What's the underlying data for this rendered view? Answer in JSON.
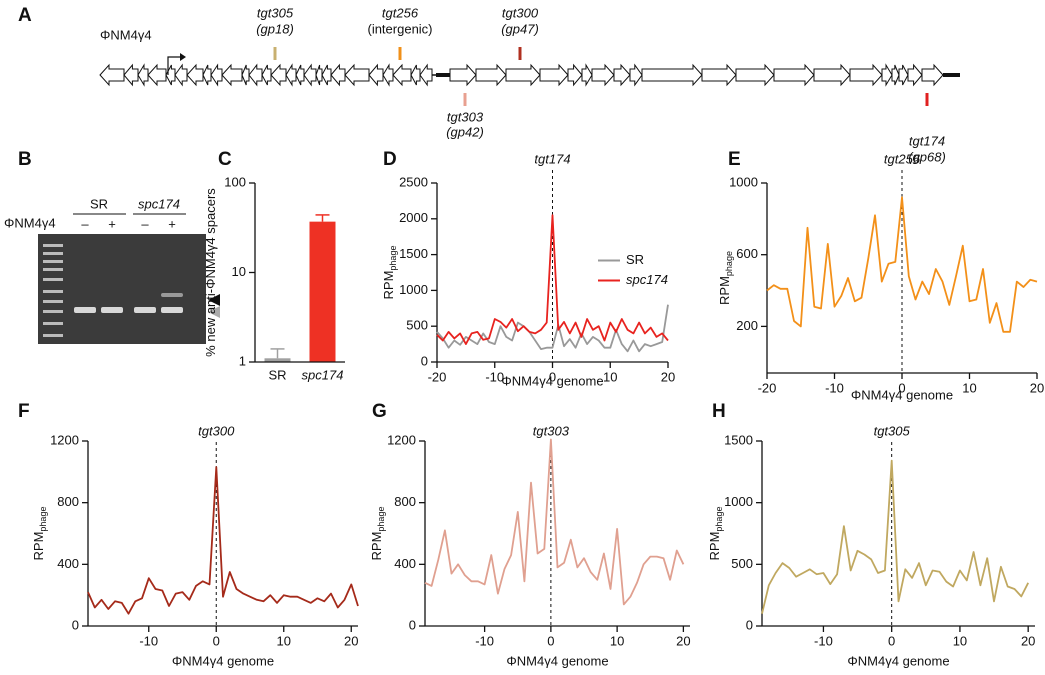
{
  "genome_map": {
    "panel": "A",
    "phage": "ΦNM4γ4",
    "targets": [
      {
        "name": "tgt305",
        "gene": "(gp18)",
        "color": "#c8b070"
      },
      {
        "name": "tgt256",
        "gene": "(intergenic)",
        "color": "#f0901a"
      },
      {
        "name": "tgt300",
        "gene": "(gp47)",
        "color": "#b03020"
      },
      {
        "name": "tgt303",
        "gene": "(gp42)",
        "color": "#e8a090"
      },
      {
        "name": "tgt174",
        "gene": "(gp68)",
        "color": "#e02020"
      }
    ]
  },
  "gel": {
    "panel": "B",
    "phage": "ΦNM4γ4",
    "groups": [
      "SR",
      "spc174"
    ],
    "lanes": [
      "–",
      "+",
      "–",
      "+"
    ]
  },
  "chart_data": [
    {
      "panel": "C",
      "type": "bar",
      "ylabel": "% new anti-ΦNM4γ4 spacers",
      "categories": [
        "SR",
        "spc174"
      ],
      "values": [
        1.1,
        37
      ],
      "errors": [
        0.3,
        7
      ],
      "colors": [
        "#a0a0a0",
        "#ee3124"
      ],
      "log_scale": true,
      "ylim": [
        1,
        100
      ],
      "yticks": [
        1,
        10,
        100
      ]
    },
    {
      "panel": "D",
      "type": "line",
      "annotation": "tgt174",
      "vline": 0,
      "xlabel": "ΦNM4γ4 genome",
      "ylabel": "RPM",
      "ylabel_sub": "phage",
      "x": [
        -20,
        -19,
        -18,
        -17,
        -16,
        -15,
        -14,
        -13,
        -12,
        -11,
        -10,
        -9,
        -8,
        -7,
        -6,
        -5,
        -4,
        -3,
        -2,
        -1,
        0,
        1,
        2,
        3,
        4,
        5,
        6,
        7,
        8,
        9,
        10,
        11,
        12,
        13,
        14,
        15,
        16,
        17,
        18,
        19,
        20
      ],
      "xlim": [
        -20,
        20
      ],
      "xticks": [
        -20,
        -10,
        0,
        10,
        20
      ],
      "ylim": [
        0,
        2500
      ],
      "yticks": [
        0,
        500,
        1000,
        1500,
        2000,
        2500
      ],
      "legend": "right",
      "series": [
        {
          "name": "SR",
          "color": "#999999",
          "values": [
            420,
            330,
            200,
            300,
            240,
            350,
            300,
            250,
            400,
            280,
            250,
            500,
            350,
            300,
            550,
            500,
            420,
            300,
            180,
            200,
            200,
            520,
            220,
            320,
            200,
            400,
            250,
            350,
            300,
            200,
            200,
            450,
            250,
            150,
            300,
            150,
            250,
            220,
            250,
            280,
            800
          ]
        },
        {
          "name": "spc174",
          "color": "#e8231f",
          "values": [
            380,
            300,
            420,
            330,
            400,
            250,
            400,
            420,
            310,
            330,
            600,
            560,
            480,
            600,
            430,
            500,
            420,
            400,
            450,
            550,
            2050,
            450,
            560,
            400,
            550,
            350,
            600,
            450,
            500,
            300,
            550,
            420,
            600,
            450,
            400,
            550,
            400,
            480,
            350,
            400,
            300
          ]
        }
      ]
    },
    {
      "panel": "E",
      "type": "line",
      "annotation": "tgt256",
      "vline": 0,
      "xlabel": "ΦNM4γ4 genome",
      "ylabel": "RPM",
      "ylabel_sub": "phage",
      "x": [
        -20,
        -19,
        -18,
        -17,
        -16,
        -15,
        -14,
        -13,
        -12,
        -11,
        -10,
        -9,
        -8,
        -7,
        -6,
        -5,
        -4,
        -3,
        -2,
        -1,
        0,
        1,
        2,
        3,
        4,
        5,
        6,
        7,
        8,
        9,
        10,
        11,
        12,
        13,
        14,
        15,
        16,
        17,
        18,
        19,
        20
      ],
      "xlim": [
        -20,
        20
      ],
      "xticks": [
        -20,
        -10,
        0,
        10,
        20
      ],
      "ylim": [
        -60,
        1000
      ],
      "yticks": [
        200,
        600,
        1000
      ],
      "series": [
        {
          "color": "#f39019",
          "values": [
            400,
            430,
            410,
            410,
            230,
            200,
            750,
            310,
            300,
            660,
            310,
            370,
            470,
            340,
            360,
            580,
            820,
            450,
            550,
            560,
            920,
            480,
            350,
            450,
            380,
            520,
            450,
            320,
            480,
            650,
            340,
            350,
            520,
            220,
            330,
            170,
            170,
            450,
            420,
            460,
            450
          ]
        }
      ]
    },
    {
      "panel": "F",
      "type": "line",
      "annotation": "tgt300",
      "vline": 0,
      "xlabel": "ΦNM4γ4 genome",
      "ylabel": "RPM",
      "ylabel_sub": "phage",
      "x": [
        -19,
        -18,
        -17,
        -16,
        -15,
        -14,
        -13,
        -12,
        -11,
        -10,
        -9,
        -8,
        -7,
        -6,
        -5,
        -4,
        -3,
        -2,
        -1,
        0,
        1,
        2,
        3,
        4,
        5,
        6,
        7,
        8,
        9,
        10,
        11,
        12,
        13,
        14,
        15,
        16,
        17,
        18,
        19,
        20,
        21
      ],
      "xlim": [
        -19,
        21
      ],
      "xticks": [
        -10,
        0,
        10,
        20
      ],
      "ylim": [
        0,
        1200
      ],
      "yticks": [
        0,
        400,
        800,
        1200
      ],
      "series": [
        {
          "color": "#a52a1a",
          "values": [
            220,
            120,
            170,
            110,
            160,
            150,
            80,
            160,
            180,
            310,
            240,
            230,
            130,
            210,
            220,
            170,
            260,
            290,
            270,
            1030,
            190,
            350,
            240,
            210,
            190,
            170,
            160,
            200,
            150,
            200,
            190,
            190,
            170,
            150,
            180,
            160,
            210,
            120,
            170,
            270,
            130
          ]
        }
      ]
    },
    {
      "panel": "G",
      "type": "line",
      "annotation": "tgt303",
      "vline": 0,
      "xlabel": "ΦNM4γ4 genome",
      "ylabel": "RPM",
      "ylabel_sub": "phage",
      "x": [
        -19,
        -18,
        -17,
        -16,
        -15,
        -14,
        -13,
        -12,
        -11,
        -10,
        -9,
        -8,
        -7,
        -6,
        -5,
        -4,
        -3,
        -2,
        -1,
        0,
        1,
        2,
        3,
        4,
        5,
        6,
        7,
        8,
        9,
        10,
        11,
        12,
        13,
        14,
        15,
        16,
        17,
        18,
        19,
        20
      ],
      "xlim": [
        -19,
        21
      ],
      "xticks": [
        -10,
        0,
        10,
        20
      ],
      "ylim": [
        0,
        1200
      ],
      "yticks": [
        0,
        400,
        800,
        1200
      ],
      "series": [
        {
          "color": "#e0a090",
          "values": [
            280,
            260,
            430,
            620,
            340,
            400,
            330,
            290,
            290,
            270,
            460,
            210,
            370,
            460,
            740,
            290,
            930,
            470,
            500,
            1210,
            380,
            410,
            560,
            380,
            440,
            350,
            300,
            470,
            240,
            630,
            140,
            190,
            280,
            400,
            450,
            450,
            440,
            300,
            490,
            400
          ]
        }
      ]
    },
    {
      "panel": "H",
      "type": "line",
      "annotation": "tgt305",
      "vline": 0,
      "xlabel": "ΦNM4γ4 genome",
      "ylabel": "RPM",
      "ylabel_sub": "phage",
      "x": [
        -19,
        -18,
        -17,
        -16,
        -15,
        -14,
        -13,
        -12,
        -11,
        -10,
        -9,
        -8,
        -7,
        -6,
        -5,
        -4,
        -3,
        -2,
        -1,
        0,
        1,
        2,
        3,
        4,
        5,
        6,
        7,
        8,
        9,
        10,
        11,
        12,
        13,
        14,
        15,
        16,
        17,
        18,
        19,
        20
      ],
      "xlim": [
        -19,
        21
      ],
      "xticks": [
        -10,
        0,
        10,
        20
      ],
      "ylim": [
        0,
        1500
      ],
      "yticks": [
        0,
        500,
        1000,
        1500
      ],
      "series": [
        {
          "color": "#c0a860",
          "values": [
            100,
            330,
            430,
            510,
            470,
            400,
            430,
            460,
            420,
            430,
            340,
            420,
            810,
            450,
            610,
            580,
            540,
            430,
            450,
            1340,
            200,
            460,
            390,
            510,
            330,
            450,
            440,
            360,
            320,
            450,
            370,
            600,
            330,
            550,
            200,
            480,
            320,
            300,
            240,
            350
          ]
        }
      ]
    }
  ]
}
